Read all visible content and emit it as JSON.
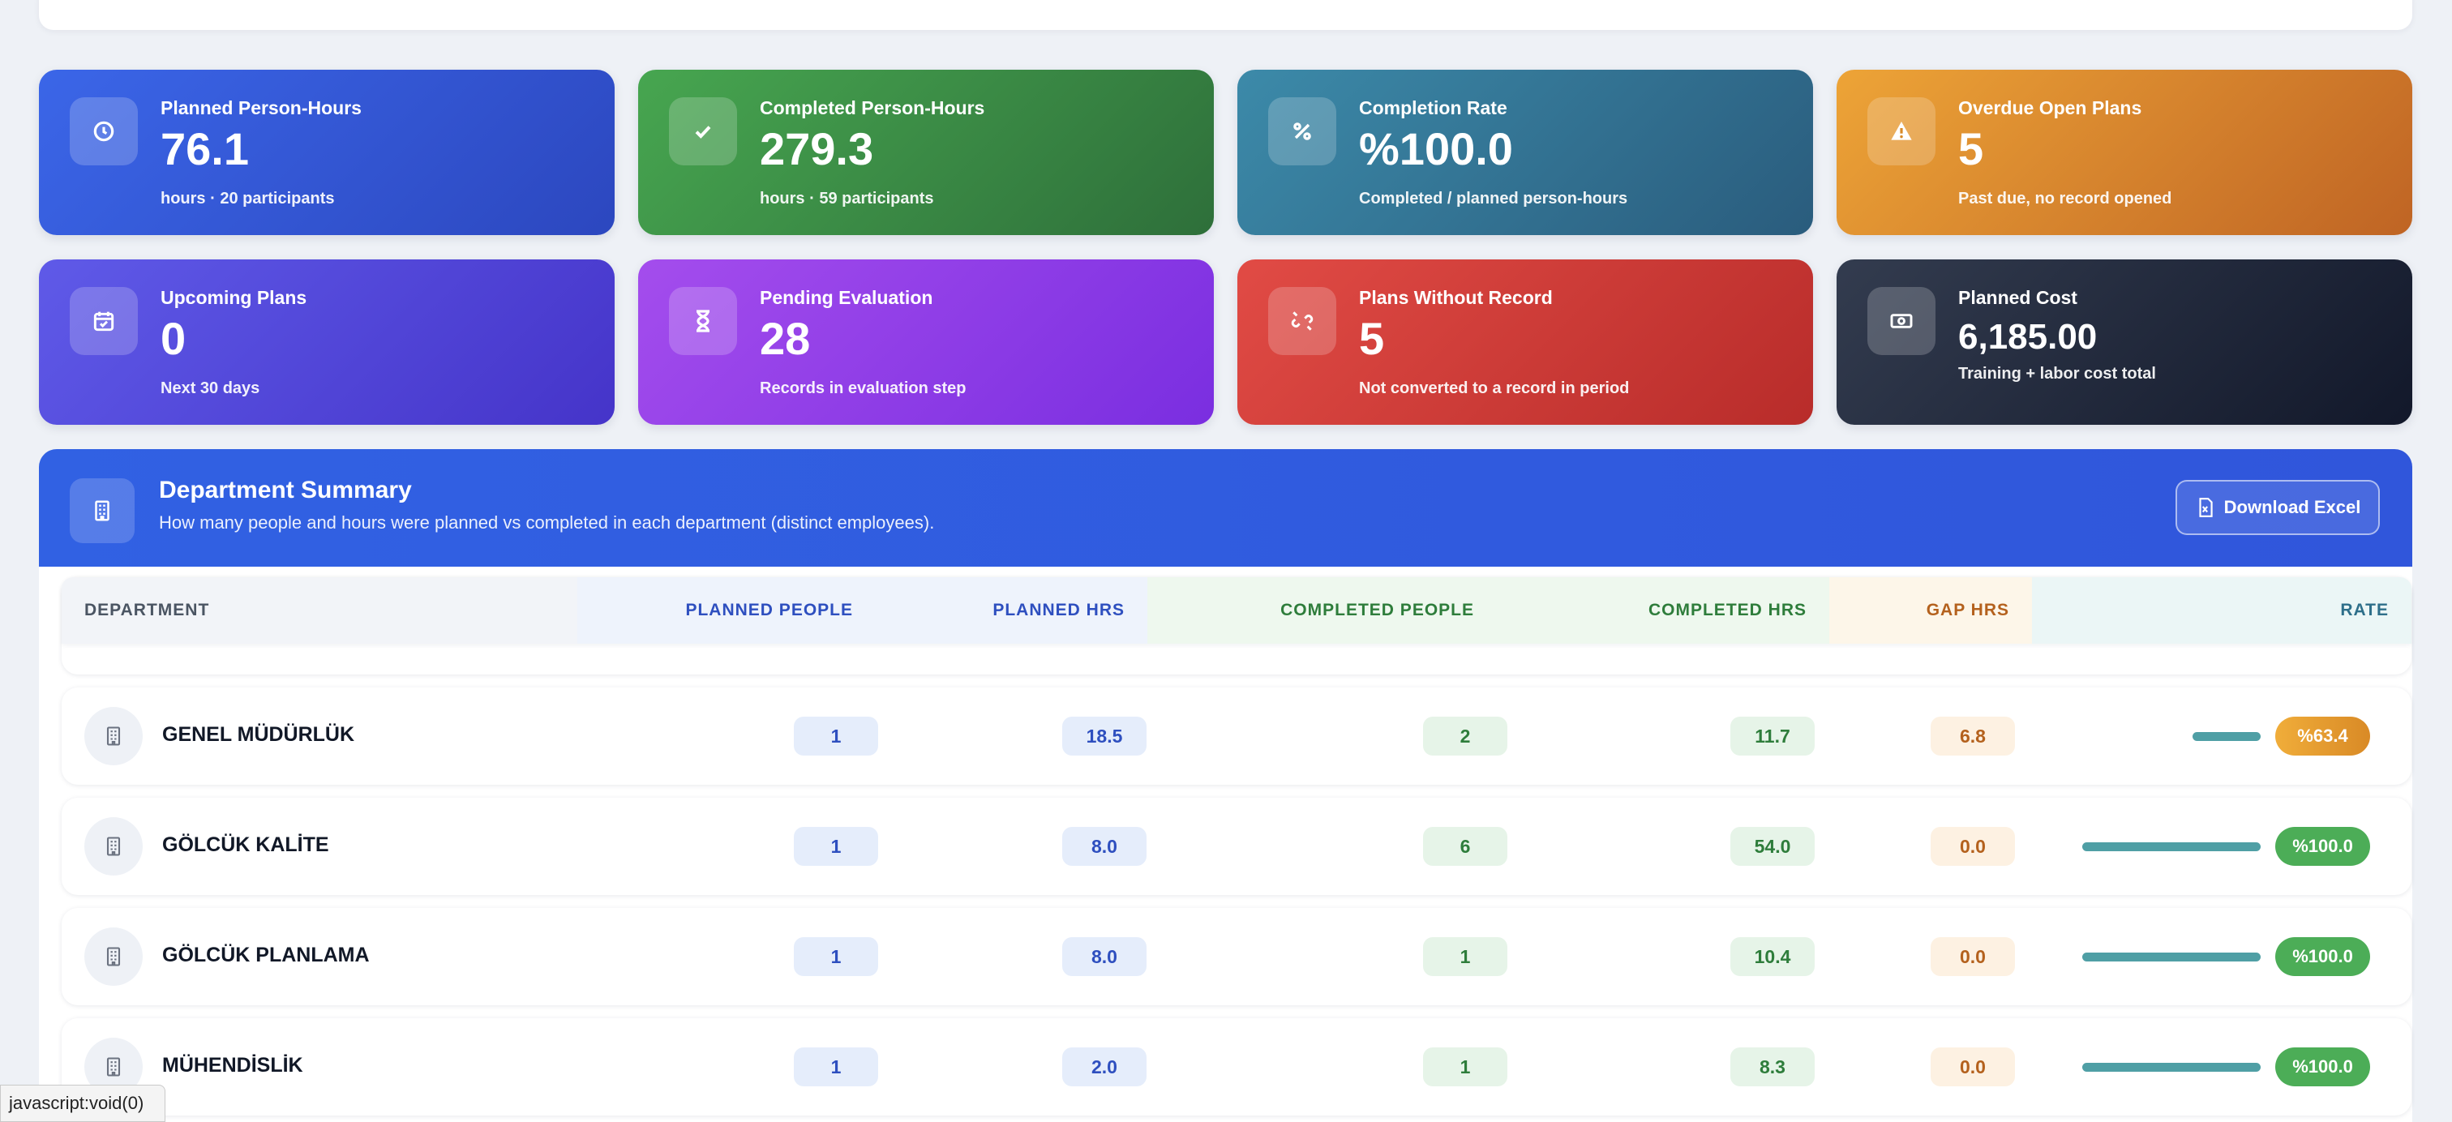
{
  "cards": [
    {
      "label": "Planned Person-Hours",
      "value": "76.1",
      "sub": "hours · 20 participants",
      "icon": "clock-icon"
    },
    {
      "label": "Completed Person-Hours",
      "value": "279.3",
      "sub": "hours · 59 participants",
      "icon": "check-icon"
    },
    {
      "label": "Completion Rate",
      "value": "%100.0",
      "sub": "Completed / planned person-hours",
      "icon": "percent-icon"
    },
    {
      "label": "Overdue Open Plans",
      "value": "5",
      "sub": "Past due, no record opened",
      "icon": "warning-icon"
    },
    {
      "label": "Upcoming Plans",
      "value": "0",
      "sub": "Next 30 days",
      "icon": "calendar-check-icon"
    },
    {
      "label": "Pending Evaluation",
      "value": "28",
      "sub": "Records in evaluation step",
      "icon": "hourglass-icon"
    },
    {
      "label": "Plans Without Record",
      "value": "5",
      "sub": "Not converted to a record in period",
      "icon": "unlink-icon"
    },
    {
      "label": "Planned Cost",
      "value": "6,185.00",
      "sub": "Training + labor cost total",
      "icon": "money-icon"
    }
  ],
  "department_summary": {
    "title": "Department Summary",
    "subtitle": "How many people and hours were planned vs completed in each department (distinct employees).",
    "download_label": "Download Excel",
    "columns": [
      "DEPARTMENT",
      "PLANNED PEOPLE",
      "PLANNED HRS",
      "COMPLETED PEOPLE",
      "COMPLETED HRS",
      "GAP HRS",
      "RATE"
    ],
    "rows": [
      {
        "name": "GENEL MÜDÜRLÜK",
        "planned_people": "1",
        "planned_hrs": "18.5",
        "completed_people": "2",
        "completed_hrs": "11.7",
        "gap_hrs": "6.8",
        "rate": "%63.4",
        "rate_value": 63.4
      },
      {
        "name": "GÖLCÜK KALİTE",
        "planned_people": "1",
        "planned_hrs": "8.0",
        "completed_people": "6",
        "completed_hrs": "54.0",
        "gap_hrs": "0.0",
        "rate": "%100.0",
        "rate_value": 100
      },
      {
        "name": "GÖLCÜK PLANLAMA",
        "planned_people": "1",
        "planned_hrs": "8.0",
        "completed_people": "1",
        "completed_hrs": "10.4",
        "gap_hrs": "0.0",
        "rate": "%100.0",
        "rate_value": 100
      },
      {
        "name": "MÜHENDİSLİK",
        "planned_people": "1",
        "planned_hrs": "2.0",
        "completed_people": "1",
        "completed_hrs": "8.3",
        "gap_hrs": "0.0",
        "rate": "%100.0",
        "rate_value": 100
      }
    ]
  },
  "status_bar": "javascript:void(0)",
  "colors": {
    "accent": "#3161e3",
    "success": "#4cad57",
    "warning": "#f0ad3a",
    "danger": "#e14b45"
  }
}
